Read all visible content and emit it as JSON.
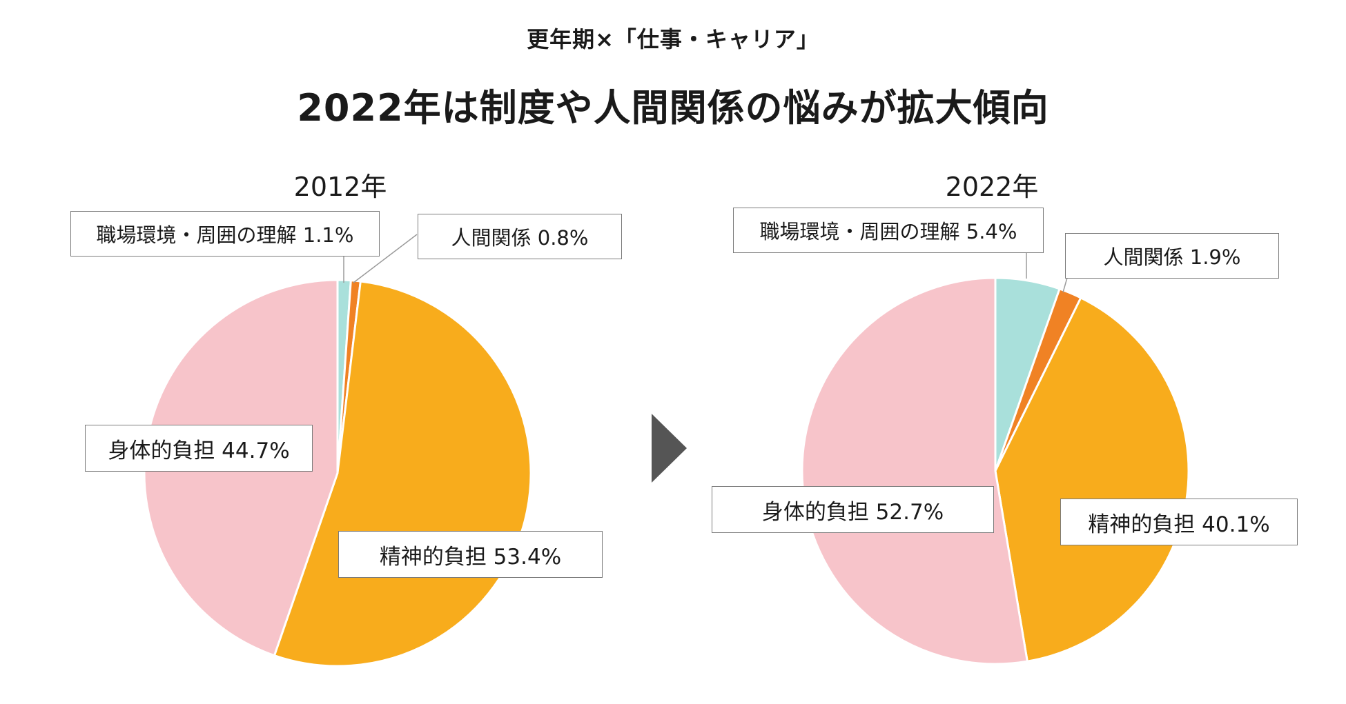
{
  "subtitle": "更年期×「仕事・キャリア」",
  "title": "2022年は制度や人間関係の悩みが拡大傾向",
  "colors": {
    "orange": "#F8AC1C",
    "pink": "#F7C4CA",
    "teal": "#A9E0DB",
    "dark_orange": "#F08224",
    "arrow": "#555555"
  },
  "chart_data": [
    {
      "type": "pie",
      "title": "2012年",
      "slices": [
        {
          "name": "職場環境・周囲の理解",
          "value": 1.1,
          "color": "#A9E0DB",
          "label": "職場環境・周囲の理解 1.1%"
        },
        {
          "name": "人間関係",
          "value": 0.8,
          "color": "#F08224",
          "label": "人間関係 0.8%"
        },
        {
          "name": "精神的負担",
          "value": 53.4,
          "color": "#F8AC1C",
          "label": "精神的負担 53.4%"
        },
        {
          "name": "身体的負担",
          "value": 44.7,
          "color": "#F7C4CA",
          "label": "身体的負担 44.7%"
        }
      ]
    },
    {
      "type": "pie",
      "title": "2022年",
      "slices": [
        {
          "name": "職場環境・周囲の理解",
          "value": 5.4,
          "color": "#A9E0DB",
          "label": "職場環境・周囲の理解 5.4%"
        },
        {
          "name": "人間関係",
          "value": 1.9,
          "color": "#F08224",
          "label": "人間関係 1.9%"
        },
        {
          "name": "精神的負担",
          "value": 40.1,
          "color": "#F8AC1C",
          "label": "精神的負担 40.1%"
        },
        {
          "name": "身体的負担",
          "value": 52.7,
          "color": "#F7C4CA",
          "label": "身体的負担 52.7%"
        }
      ]
    }
  ]
}
